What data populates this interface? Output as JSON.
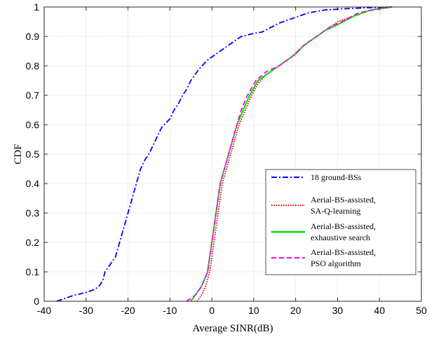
{
  "chart_data": {
    "type": "line",
    "title": "",
    "xlabel": "Average SINR(dB)",
    "ylabel": "CDF",
    "xlim": [
      -40,
      50
    ],
    "ylim": [
      0,
      1
    ],
    "xticks": [
      -40,
      -30,
      -20,
      -10,
      0,
      10,
      20,
      30,
      40,
      50
    ],
    "yticks": [
      0,
      0.1,
      0.2,
      0.3,
      0.4,
      0.5,
      0.6,
      0.7,
      0.8,
      0.9,
      1
    ],
    "grid": true,
    "legend_position": "lower-right",
    "series": [
      {
        "name": "18 ground-BSs",
        "color": "#0000ff",
        "line_style": "dash-dot",
        "points": [
          [
            -37,
            0
          ],
          [
            -35,
            0.01
          ],
          [
            -33,
            0.02
          ],
          [
            -30,
            0.03
          ],
          [
            -28,
            0.04
          ],
          [
            -27,
            0.05
          ],
          [
            -26,
            0.07
          ],
          [
            -25.5,
            0.1
          ],
          [
            -24,
            0.13
          ],
          [
            -23,
            0.15
          ],
          [
            -22,
            0.2
          ],
          [
            -21,
            0.25
          ],
          [
            -20,
            0.3
          ],
          [
            -19,
            0.35
          ],
          [
            -18,
            0.4
          ],
          [
            -17,
            0.45
          ],
          [
            -16,
            0.48
          ],
          [
            -15,
            0.5
          ],
          [
            -14,
            0.53
          ],
          [
            -13,
            0.56
          ],
          [
            -12,
            0.59
          ],
          [
            -10,
            0.62
          ],
          [
            -9,
            0.65
          ],
          [
            -8,
            0.67
          ],
          [
            -7,
            0.7
          ],
          [
            -6,
            0.72
          ],
          [
            -5,
            0.75
          ],
          [
            -4,
            0.77
          ],
          [
            -3,
            0.79
          ],
          [
            -1,
            0.82
          ],
          [
            1,
            0.84
          ],
          [
            3,
            0.86
          ],
          [
            5,
            0.88
          ],
          [
            7,
            0.9
          ],
          [
            10,
            0.91
          ],
          [
            12,
            0.915
          ],
          [
            14,
            0.93
          ],
          [
            16,
            0.945
          ],
          [
            18,
            0.955
          ],
          [
            20,
            0.965
          ],
          [
            23,
            0.98
          ],
          [
            27,
            0.99
          ],
          [
            33,
            0.995
          ],
          [
            38,
            0.998
          ],
          [
            43,
            1
          ]
        ]
      },
      {
        "name": "Aerial-BS-assisted, SA-Q-learning",
        "color": "#e00000",
        "line_style": "dotted",
        "points": [
          [
            -3.5,
            0
          ],
          [
            -2.5,
            0.02
          ],
          [
            -1.5,
            0.05
          ],
          [
            -0.5,
            0.1
          ],
          [
            0.5,
            0.2
          ],
          [
            1.5,
            0.3
          ],
          [
            2.5,
            0.4
          ],
          [
            3.5,
            0.45
          ],
          [
            4.5,
            0.5
          ],
          [
            5.5,
            0.55
          ],
          [
            6.5,
            0.6
          ],
          [
            8,
            0.65
          ],
          [
            9.5,
            0.7
          ],
          [
            11,
            0.74
          ],
          [
            13,
            0.77
          ],
          [
            16,
            0.8
          ],
          [
            19,
            0.83
          ],
          [
            22,
            0.87
          ],
          [
            24,
            0.89
          ],
          [
            27,
            0.92
          ],
          [
            30,
            0.95
          ],
          [
            34,
            0.97
          ],
          [
            38,
            0.99
          ],
          [
            43,
            1
          ]
        ]
      },
      {
        "name": "Aerial-BS-assisted, exhaustive search",
        "color": "#00dd00",
        "line_style": "solid",
        "points": [
          [
            -5,
            0
          ],
          [
            -4,
            0.02
          ],
          [
            -2.5,
            0.05
          ],
          [
            -1,
            0.1
          ],
          [
            0,
            0.2
          ],
          [
            1,
            0.3
          ],
          [
            2,
            0.4
          ],
          [
            3,
            0.45
          ],
          [
            4,
            0.5
          ],
          [
            5,
            0.55
          ],
          [
            6,
            0.6
          ],
          [
            7.5,
            0.65
          ],
          [
            9,
            0.7
          ],
          [
            11,
            0.75
          ],
          [
            14,
            0.78
          ],
          [
            17,
            0.81
          ],
          [
            20,
            0.84
          ],
          [
            22,
            0.87
          ],
          [
            24,
            0.89
          ],
          [
            27,
            0.92
          ],
          [
            30,
            0.94
          ],
          [
            34,
            0.97
          ],
          [
            38,
            0.99
          ],
          [
            43,
            1
          ]
        ]
      },
      {
        "name": "Aerial-BS-assisted, PSO algorithm",
        "color": "#ff00ff",
        "line_style": "dashed",
        "points": [
          [
            -6,
            0
          ],
          [
            -4,
            0.02
          ],
          [
            -2.5,
            0.05
          ],
          [
            -1,
            0.1
          ],
          [
            0,
            0.2
          ],
          [
            1,
            0.3
          ],
          [
            2,
            0.4
          ],
          [
            3,
            0.45
          ],
          [
            4,
            0.5
          ],
          [
            5,
            0.55
          ],
          [
            6,
            0.6
          ],
          [
            7,
            0.65
          ],
          [
            8.5,
            0.7
          ],
          [
            10.5,
            0.75
          ],
          [
            13,
            0.78
          ],
          [
            16,
            0.8
          ],
          [
            19,
            0.83
          ],
          [
            22,
            0.87
          ],
          [
            25,
            0.9
          ],
          [
            28,
            0.93
          ],
          [
            31,
            0.95
          ],
          [
            35,
            0.98
          ],
          [
            40,
            0.995
          ],
          [
            43,
            1
          ]
        ]
      }
    ],
    "legend": {
      "entries": [
        {
          "lines": [
            "18 ground-BSs"
          ]
        },
        {
          "lines": [
            "Aerial-BS-assisted,",
            "SA-Q-learning"
          ]
        },
        {
          "lines": [
            "Aerial-BS-assisted,",
            "exhaustive search"
          ]
        },
        {
          "lines": [
            "Aerial-BS-assisted,",
            "PSO algorithm"
          ]
        }
      ]
    }
  }
}
